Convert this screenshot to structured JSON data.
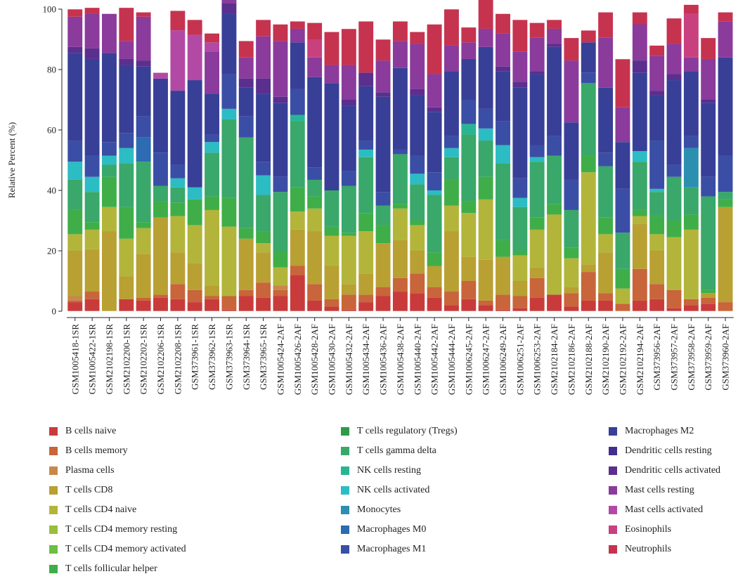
{
  "chart_data": {
    "type": "bar",
    "stacked": true,
    "ylabel": "Relative Percent (%)",
    "xlabel": "",
    "ylim": [
      0,
      100
    ],
    "yticks": [
      0,
      20,
      40,
      60,
      80,
      100
    ],
    "grid": false,
    "legend_position": "bottom",
    "categories": [
      "GSM1005418-1SR",
      "GSM1005422-1SR",
      "GSM2102198-1SR",
      "GSM2102200-1SR",
      "GSM2102202-1SR",
      "GSM2102206-1SR",
      "GSM2102208-1SR",
      "GSM373961-1SR",
      "GSM373962-1SR",
      "GSM373963-1SR",
      "GSM373964-1SR",
      "GSM373965-1SR",
      "GSM1005424-2AF",
      "GSM1005426-2AF",
      "GSM1005428-2AF",
      "GSM1005430-2AF",
      "GSM1005432-2AF",
      "GSM1005434-2AF",
      "GSM1005436-2AF",
      "GSM1005438-2AF",
      "GSM1005440-2AF",
      "GSM1005442-2AF",
      "GSM1005444-2AF",
      "GSM1006245-2AF",
      "GSM1006247-2AF",
      "GSM1006249-2AF",
      "GSM1006251-2AF",
      "GSM1006253-2AF",
      "GSM2102184-2AF",
      "GSM2102186-2AF",
      "GSM2102188-2AF",
      "GSM2102190-2AF",
      "GSM2102192-2AF",
      "GSM2102194-2AF",
      "GSM373956-2AF",
      "GSM373957-2AF",
      "GSM373958-2AF",
      "GSM373959-2AF",
      "GSM373960-2AF"
    ],
    "series": [
      {
        "name": "B cells naive",
        "color": "#c93b3b",
        "values": [
          3,
          4,
          0,
          4,
          3.5,
          4.5,
          4,
          3,
          4,
          0.5,
          5,
          4.5,
          5,
          12,
          3.5,
          1.5,
          0.5,
          3,
          5,
          6.5,
          6,
          4.5,
          2,
          4,
          2,
          0.5,
          1,
          4.5,
          5.5,
          1.5,
          3.5,
          3.5,
          0,
          3.5,
          4,
          1,
          2,
          2.5,
          0
        ]
      },
      {
        "name": "B cells memory",
        "color": "#c8653a",
        "values": [
          0.5,
          2.5,
          0,
          0,
          1,
          1,
          5,
          4,
          1,
          4.5,
          2,
          5,
          2,
          3,
          5.5,
          2.5,
          5,
          2.5,
          3,
          4.5,
          6.5,
          3.5,
          4.5,
          6,
          1.5,
          5,
          4,
          6.5,
          0,
          4.5,
          9.5,
          2.5,
          2.5,
          10.5,
          5,
          6,
          2,
          2,
          3
        ]
      },
      {
        "name": "Plasma cells",
        "color": "#c7884a",
        "values": [
          1.5,
          0,
          0,
          0,
          0,
          0,
          0,
          0,
          0,
          0,
          0,
          0,
          1.5,
          0,
          0,
          0,
          0,
          0,
          0,
          0,
          0,
          0,
          0,
          0,
          0,
          0,
          0,
          0,
          0,
          0,
          0,
          0,
          0,
          0,
          0,
          0,
          0,
          0,
          0
        ]
      },
      {
        "name": "T cells CD8",
        "color": "#b8a033",
        "values": [
          15,
          14,
          26.5,
          7.5,
          14.5,
          25.5,
          10.5,
          9,
          3.5,
          0,
          17,
          10,
          0,
          12,
          17.5,
          11,
          3.5,
          7,
          14.5,
          12.5,
          7.5,
          7,
          20,
          8,
          13.5,
          12.5,
          5,
          3.5,
          0,
          2,
          2.5,
          13.5,
          0,
          15,
          11,
          0,
          0,
          1.5,
          31.5
        ]
      },
      {
        "name": "T cells CD4 naive",
        "color": "#b2b53a",
        "values": [
          5.5,
          6.5,
          8,
          12.5,
          8.5,
          0,
          12,
          12.5,
          25,
          23,
          0,
          3,
          6,
          6,
          7.5,
          10,
          16,
          14,
          0,
          10.5,
          8.5,
          0,
          8.5,
          14.5,
          20,
          0,
          8.5,
          12.5,
          26.5,
          9.5,
          30.5,
          6,
          5,
          2.5,
          5.5,
          17.5,
          23,
          0,
          0
        ]
      },
      {
        "name": "T cells CD4 memory resting",
        "color": "#98be3c",
        "values": [
          0,
          0,
          0,
          0,
          0,
          0,
          0,
          0,
          0,
          0,
          0,
          0,
          0,
          0,
          0,
          0,
          0,
          0,
          0,
          0,
          0,
          0,
          0,
          0,
          0,
          0,
          0,
          0,
          0,
          0,
          0,
          0,
          0,
          0,
          0,
          0,
          0,
          0,
          0
        ]
      },
      {
        "name": "T cells CD4 memory activated",
        "color": "#6cbf40",
        "values": [
          0,
          0,
          0,
          0,
          0,
          0,
          0,
          0,
          0,
          0,
          0,
          0,
          0,
          0,
          0,
          0,
          0,
          0,
          0,
          0,
          0,
          0,
          0,
          0,
          0,
          0,
          0,
          0,
          0,
          0,
          0,
          0,
          0,
          0,
          0,
          0,
          0,
          0,
          0
        ]
      },
      {
        "name": "T cells follicular helper",
        "color": "#3fae49",
        "values": [
          8,
          2.5,
          10,
          10.5,
          2,
          5.5,
          4.5,
          8.5,
          4.5,
          9.5,
          3.5,
          4,
          5.5,
          8,
          4,
          3,
          1,
          6,
          6,
          1.5,
          1.5,
          4.5,
          8.5,
          4,
          7.5,
          5.5,
          1.5,
          4,
          3.5,
          3.5,
          5.5,
          5.5,
          6.5,
          2,
          6,
          5.5,
          5,
          1,
          2.5
        ]
      },
      {
        "name": "T cells regulatory (Tregs)",
        "color": "#2e9a4a",
        "values": [
          0,
          0,
          0,
          0,
          0,
          0,
          0,
          0,
          0,
          0,
          0,
          0,
          0,
          0,
          0,
          0,
          0,
          0,
          0,
          0,
          0,
          0,
          0,
          0,
          0,
          0,
          0,
          0,
          0,
          0,
          0,
          0,
          0,
          0,
          0,
          0,
          0,
          0,
          0
        ]
      },
      {
        "name": "T cells gamma delta",
        "color": "#39a86a",
        "values": [
          10,
          10,
          4,
          14.5,
          20,
          5,
          5,
          0,
          14.5,
          26,
          30,
          12,
          19.5,
          22,
          5.5,
          12,
          15.5,
          18.5,
          6.5,
          16.5,
          12,
          19,
          7.5,
          22,
          12,
          25.5,
          14.5,
          18.5,
          16,
          12.5,
          24,
          17,
          12,
          16,
          8,
          14.5,
          9,
          31,
          2.5
        ]
      },
      {
        "name": "NK cells resting",
        "color": "#28b594",
        "values": [
          0,
          0,
          0,
          0,
          0,
          0,
          0,
          0,
          0,
          0,
          0,
          0,
          0,
          2,
          0,
          0,
          0,
          0,
          0,
          0,
          0,
          0,
          0,
          3.5,
          0,
          0,
          0,
          0,
          0,
          0,
          0,
          0,
          0,
          0,
          0,
          0,
          0,
          0,
          0
        ]
      },
      {
        "name": "NK cells activated",
        "color": "#2cbcc3",
        "values": [
          6,
          5,
          3,
          5,
          0,
          0,
          3,
          4,
          3.5,
          3.5,
          0,
          6.5,
          0,
          0,
          0,
          0,
          0,
          2.5,
          0,
          0,
          3.5,
          1.5,
          3,
          0,
          4,
          6,
          3,
          1.5,
          0,
          0,
          0,
          0,
          0,
          3.5,
          1,
          0,
          0,
          0,
          0
        ]
      },
      {
        "name": "Monocytes",
        "color": "#2b8fb0",
        "values": [
          0,
          0,
          0,
          0,
          0,
          0,
          0,
          0,
          0,
          0,
          0,
          0,
          0,
          0,
          0,
          0,
          0,
          0,
          0,
          0,
          0,
          0,
          0,
          0,
          0,
          0,
          0,
          0,
          0,
          0,
          0,
          0,
          0,
          0,
          0,
          0,
          13,
          0,
          0
        ]
      },
      {
        "name": "Macrophages M0",
        "color": "#2d6bb3",
        "values": [
          0,
          0,
          0,
          0,
          8,
          0,
          0,
          0,
          0,
          0,
          0,
          0,
          0,
          0,
          0,
          0,
          0,
          0,
          0,
          0,
          0,
          0,
          0,
          0,
          0,
          0,
          0,
          0,
          0,
          0,
          0,
          0,
          0,
          0,
          0,
          0,
          0,
          0,
          0
        ]
      },
      {
        "name": "Macrophages M1",
        "color": "#3b4ea5",
        "values": [
          7,
          7,
          4.5,
          5,
          7,
          11,
          4.5,
          0,
          2.5,
          11.5,
          7,
          4.5,
          5,
          8.5,
          4,
          0,
          5,
          3,
          4.5,
          1.5,
          6,
          6,
          4,
          8,
          6.5,
          8,
          6.5,
          4,
          6.5,
          10,
          3.5,
          4.5,
          14.5,
          0,
          16,
          4,
          4,
          6.5,
          12
        ]
      },
      {
        "name": "Macrophages M2",
        "color": "#383f97",
        "values": [
          29,
          32,
          29.5,
          22.5,
          16.5,
          24.5,
          24.5,
          35.5,
          13.5,
          20,
          9.5,
          22.5,
          24.5,
          15.5,
          30,
          35.5,
          21.5,
          18,
          31.5,
          27,
          20,
          20,
          21.5,
          13.5,
          20.5,
          16.5,
          30,
          23.5,
          29.5,
          19,
          10,
          21.5,
          15.5,
          26,
          15,
          28,
          21.5,
          24.5,
          32.5
        ]
      },
      {
        "name": "Dendritic cells resting",
        "color": "#442e8c",
        "values": [
          0,
          0,
          0,
          0,
          0,
          0,
          0,
          0,
          0,
          0,
          0,
          0,
          0,
          0,
          0,
          0,
          0,
          0,
          0,
          0,
          0,
          0,
          0,
          0,
          0,
          0,
          0,
          0,
          0,
          0,
          0,
          0,
          0,
          0,
          0,
          0,
          0,
          0,
          0
        ]
      },
      {
        "name": "Dendritic cells activated",
        "color": "#5a2f8e",
        "values": [
          2,
          3.5,
          0,
          2,
          2,
          0,
          0,
          0,
          0,
          3.5,
          3,
          5,
          2,
          0,
          0,
          0,
          2,
          4.5,
          1.5,
          0,
          2,
          1.5,
          0,
          0,
          0,
          1.5,
          2,
          1,
          1,
          0,
          0,
          0,
          0,
          4,
          1.5,
          2,
          0,
          1,
          0
        ]
      },
      {
        "name": "Mast cells resting",
        "color": "#8a3b9b",
        "values": [
          10,
          11.5,
          13,
          6,
          14.5,
          0,
          0,
          0,
          14,
          3.5,
          7,
          14,
          18.5,
          4.5,
          6.5,
          6,
          11.5,
          0,
          10.5,
          9,
          15,
          11,
          8.5,
          5.5,
          6,
          11,
          10,
          11,
          5,
          20.5,
          0,
          16.5,
          11.5,
          12,
          11.5,
          10,
          4.5,
          13.5,
          12
        ]
      },
      {
        "name": "Mast cells activated",
        "color": "#b24aa5",
        "values": [
          0,
          0,
          0,
          0,
          0,
          2,
          20,
          15,
          3,
          0,
          0,
          0,
          0,
          0,
          0,
          0,
          0,
          0,
          0,
          0,
          0,
          0,
          0,
          0,
          0,
          0,
          0,
          0,
          0,
          0,
          0,
          0,
          0,
          0,
          0,
          0,
          0,
          0,
          0
        ]
      },
      {
        "name": "Eosinophils",
        "color": "#c9407f",
        "values": [
          0,
          0,
          0,
          0,
          0,
          0,
          0,
          0,
          0,
          0,
          0,
          0,
          0,
          0,
          6,
          0,
          0,
          0,
          0,
          0,
          0,
          0,
          0,
          0,
          0,
          0,
          0,
          0,
          0,
          0,
          0,
          0,
          0,
          0,
          0,
          0,
          14.5,
          0,
          0
        ]
      },
      {
        "name": "Neutrophils",
        "color": "#c6334f",
        "values": [
          2.5,
          2,
          0,
          11,
          1.5,
          0,
          6.5,
          5,
          3,
          4,
          5.5,
          5.5,
          5.5,
          2.5,
          5.5,
          11,
          12,
          17,
          7,
          6.5,
          4,
          16.5,
          12,
          5,
          13.5,
          6.5,
          10.5,
          5,
          3,
          7.5,
          4,
          8.5,
          16,
          4,
          3.5,
          8.5,
          3,
          7,
          3
        ]
      }
    ]
  }
}
